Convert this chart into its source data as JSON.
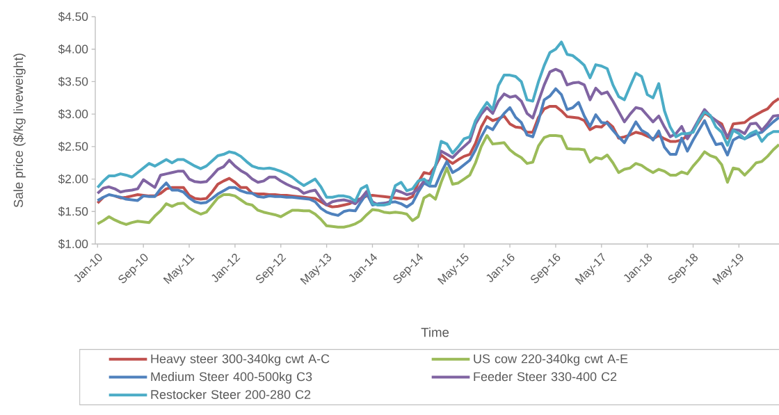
{
  "chart_data": {
    "type": "line",
    "xlabel": "Time",
    "ylabel": "Sale price ($/kg liveweight)",
    "categories": [
      "Jan-10",
      null,
      null,
      null,
      null,
      null,
      null,
      null,
      "Sep-10",
      null,
      null,
      null,
      null,
      null,
      null,
      null,
      "May-11",
      null,
      null,
      null,
      null,
      null,
      null,
      null,
      "Jan-12",
      null,
      null,
      null,
      null,
      null,
      null,
      null,
      "Sep-12",
      null,
      null,
      null,
      null,
      null,
      null,
      null,
      "May-13",
      null,
      null,
      null,
      null,
      null,
      null,
      null,
      "Jan-14",
      null,
      null,
      null,
      null,
      null,
      null,
      null,
      "Sep-14",
      null,
      null,
      null,
      null,
      null,
      null,
      null,
      "May-15",
      null,
      null,
      null,
      null,
      null,
      null,
      null,
      "Jan-16",
      null,
      null,
      null,
      null,
      null,
      null,
      null,
      "Sep-16",
      null,
      null,
      null,
      null,
      null,
      null,
      null,
      "May-17",
      null,
      null,
      null,
      null,
      null,
      null,
      null,
      "Jan-18",
      null,
      null,
      null,
      null,
      null,
      null,
      null,
      "Sep-18",
      null,
      null,
      null,
      null,
      null,
      null,
      null,
      "May-19",
      null,
      null,
      null,
      null,
      null,
      null,
      null
    ],
    "ylim": [
      1,
      4.5
    ],
    "yticks": [
      {
        "value": 1,
        "label": "$1.00"
      },
      {
        "value": 1.5,
        "label": "$1.50"
      },
      {
        "value": 2,
        "label": "$2.00"
      },
      {
        "value": 2.5,
        "label": "$2.50"
      },
      {
        "value": 3,
        "label": "$3.00"
      },
      {
        "value": 3.5,
        "label": "$3.50"
      },
      {
        "value": 4,
        "label": "$4.00"
      },
      {
        "value": 4.5,
        "label": "$4.50"
      }
    ],
    "legend": "bottom",
    "series": [
      {
        "name": "Heavy steer 300-340kg cwt A-C",
        "color": "#c0504d",
        "values": [
          1.63,
          1.72,
          null,
          1.74,
          1.71,
          1.72,
          1.74,
          1.76,
          1.75,
          1.74,
          1.74,
          1.78,
          1.85,
          1.87,
          1.87,
          1.87,
          1.75,
          1.7,
          1.69,
          1.7,
          1.8,
          1.92,
          1.97,
          2.01,
          1.95,
          1.87,
          1.87,
          1.78,
          1.77,
          1.77,
          1.76,
          1.76,
          1.75,
          1.75,
          1.74,
          1.73,
          1.72,
          1.71,
          1.7,
          1.65,
          1.6,
          1.57,
          1.58,
          1.6,
          1.62,
          1.67,
          1.7,
          1.74,
          1.75,
          1.74,
          1.73,
          1.72,
          1.71,
          1.7,
          1.69,
          1.73,
          1.95,
          2.1,
          2.08,
          2.2,
          2.37,
          2.3,
          2.24,
          2.3,
          2.35,
          2.38,
          2.55,
          2.8,
          2.96,
          2.9,
          2.93,
          2.97,
          2.85,
          2.8,
          2.79,
          2.72,
          2.72,
          2.95,
          3.08,
          3.12,
          3.12,
          3.05,
          2.96,
          2.95,
          2.94,
          2.9,
          2.76,
          2.81,
          2.8,
          2.88,
          2.8,
          2.63,
          2.65,
          2.68,
          2.72,
          2.7,
          2.66,
          2.62,
          2.67,
          2.62,
          2.58,
          2.58,
          2.6,
          2.67,
          2.74,
          2.88,
          3.02,
          2.96,
          2.9,
          2.85,
          2.63,
          2.85,
          2.86,
          2.87,
          2.94,
          2.99,
          3.04,
          3.08,
          3.18,
          3.24
        ]
      },
      {
        "name": "US cow 220-340kg cwt A-E",
        "color": "#9bbb59",
        "values": [
          1.31,
          1.36,
          1.42,
          1.37,
          1.33,
          1.3,
          1.33,
          1.35,
          1.34,
          1.33,
          1.43,
          1.51,
          1.62,
          1.58,
          1.62,
          1.63,
          1.55,
          1.5,
          1.46,
          1.49,
          1.6,
          1.71,
          1.76,
          1.76,
          1.74,
          1.68,
          1.62,
          1.6,
          1.52,
          1.49,
          1.47,
          1.45,
          1.42,
          1.47,
          1.52,
          1.52,
          1.51,
          1.51,
          1.46,
          1.38,
          1.28,
          1.27,
          1.26,
          1.26,
          1.28,
          1.31,
          1.36,
          1.45,
          1.53,
          1.52,
          1.49,
          1.48,
          1.49,
          1.48,
          1.46,
          1.36,
          1.42,
          1.71,
          1.76,
          1.69,
          1.95,
          2.17,
          1.92,
          1.94,
          2.0,
          2.06,
          2.25,
          2.5,
          2.67,
          2.54,
          2.55,
          2.56,
          2.45,
          2.38,
          2.33,
          2.24,
          2.26,
          2.51,
          2.64,
          2.67,
          2.67,
          2.66,
          2.47,
          2.46,
          2.46,
          2.45,
          2.26,
          2.33,
          2.31,
          2.37,
          2.25,
          2.1,
          2.15,
          2.17,
          2.24,
          2.21,
          2.15,
          2.1,
          2.15,
          2.12,
          2.06,
          2.06,
          2.11,
          2.08,
          2.2,
          2.3,
          2.42,
          2.36,
          2.33,
          2.22,
          1.95,
          2.17,
          2.15,
          2.06,
          2.15,
          2.25,
          2.27,
          2.35,
          2.45,
          2.53
        ]
      },
      {
        "name": "Medium Steer 400-500kg C3",
        "color": "#4f81bd",
        "values": [
          1.67,
          1.72,
          1.76,
          1.74,
          1.72,
          1.69,
          1.68,
          1.67,
          1.74,
          1.73,
          1.73,
          1.85,
          1.94,
          1.83,
          1.83,
          1.8,
          1.71,
          1.65,
          1.63,
          1.64,
          1.7,
          1.77,
          1.82,
          1.87,
          1.87,
          1.82,
          1.79,
          1.78,
          1.73,
          1.72,
          1.74,
          1.73,
          1.73,
          1.72,
          1.72,
          1.71,
          1.7,
          1.69,
          1.65,
          1.55,
          1.49,
          1.46,
          1.44,
          1.5,
          1.52,
          1.51,
          1.65,
          1.78,
          1.6,
          1.62,
          1.63,
          1.64,
          1.65,
          1.62,
          1.57,
          1.63,
          1.8,
          1.94,
          1.89,
          1.89,
          2.1,
          2.27,
          2.1,
          2.15,
          2.22,
          2.29,
          2.45,
          2.65,
          2.81,
          2.76,
          2.9,
          3.01,
          3.1,
          2.95,
          2.87,
          2.68,
          2.65,
          2.9,
          3.22,
          3.28,
          3.39,
          3.3,
          3.07,
          3.1,
          3.18,
          2.97,
          2.81,
          2.99,
          2.87,
          2.86,
          2.75,
          2.65,
          2.56,
          2.72,
          2.88,
          2.75,
          2.7,
          2.6,
          2.74,
          2.49,
          2.38,
          2.38,
          2.63,
          2.43,
          2.6,
          2.75,
          2.9,
          2.7,
          2.53,
          2.55,
          2.37,
          2.6,
          2.65,
          2.62,
          2.66,
          2.7,
          2.72,
          2.8,
          2.88,
          2.95
        ]
      },
      {
        "name": "Feeder Steer 330-400 C2",
        "color": "#8064a2",
        "values": [
          1.78,
          1.86,
          1.88,
          1.85,
          1.8,
          1.82,
          1.83,
          1.85,
          1.99,
          1.93,
          1.87,
          2.06,
          2.08,
          2.1,
          2.12,
          2.12,
          2.0,
          1.96,
          1.95,
          1.96,
          2.05,
          2.15,
          2.19,
          2.29,
          2.2,
          2.13,
          2.08,
          2.0,
          1.95,
          1.97,
          2.03,
          2.03,
          1.97,
          1.92,
          1.88,
          1.85,
          1.78,
          1.81,
          1.83,
          1.7,
          1.6,
          1.65,
          1.67,
          1.68,
          1.66,
          1.62,
          1.7,
          1.81,
          1.65,
          1.6,
          1.62,
          1.65,
          1.83,
          1.8,
          1.76,
          1.78,
          1.85,
          1.97,
          1.97,
          2.2,
          2.43,
          2.38,
          2.33,
          2.42,
          2.5,
          2.58,
          2.85,
          3.0,
          3.1,
          3.01,
          3.2,
          3.31,
          3.26,
          3.28,
          3.2,
          3.01,
          2.94,
          3.2,
          3.45,
          3.65,
          3.69,
          3.65,
          3.45,
          3.48,
          3.49,
          3.45,
          3.22,
          3.4,
          3.31,
          3.34,
          3.2,
          3.04,
          2.88,
          3.0,
          3.1,
          3.08,
          2.98,
          2.88,
          2.97,
          2.8,
          2.65,
          2.7,
          2.81,
          2.62,
          2.76,
          2.92,
          3.07,
          2.97,
          2.9,
          2.8,
          2.65,
          2.76,
          2.75,
          2.7,
          2.85,
          2.86,
          2.75,
          2.85,
          2.97,
          2.98
        ]
      },
      {
        "name": "Restocker Steer 200-280 C2",
        "color": "#4bacc6",
        "values": [
          1.87,
          1.97,
          2.05,
          2.05,
          2.08,
          2.06,
          2.03,
          2.1,
          2.17,
          2.24,
          2.2,
          2.25,
          2.3,
          2.25,
          2.3,
          2.3,
          2.25,
          2.2,
          2.16,
          2.2,
          2.28,
          2.36,
          2.38,
          2.42,
          2.4,
          2.35,
          2.27,
          2.2,
          2.17,
          2.16,
          2.17,
          2.15,
          2.12,
          2.08,
          2.03,
          1.96,
          1.9,
          1.95,
          2.0,
          1.88,
          1.72,
          1.72,
          1.74,
          1.74,
          1.72,
          1.66,
          1.85,
          1.9,
          1.62,
          1.6,
          1.6,
          1.62,
          1.9,
          1.95,
          1.82,
          1.85,
          1.97,
          2.0,
          1.92,
          2.2,
          2.58,
          2.54,
          2.4,
          2.5,
          2.62,
          2.65,
          2.9,
          3.05,
          3.18,
          3.07,
          3.44,
          3.6,
          3.6,
          3.58,
          3.5,
          3.22,
          3.2,
          3.5,
          3.75,
          3.95,
          4.0,
          4.11,
          3.92,
          3.9,
          3.83,
          3.75,
          3.56,
          3.76,
          3.74,
          3.7,
          3.45,
          3.27,
          3.22,
          3.43,
          3.63,
          3.58,
          3.3,
          3.25,
          3.47,
          3.05,
          2.8,
          2.65,
          2.7,
          2.7,
          2.72,
          2.9,
          3.03,
          2.98,
          2.8,
          2.72,
          2.52,
          2.75,
          2.7,
          2.62,
          2.7,
          2.74,
          2.58,
          2.68,
          2.73,
          2.73
        ]
      }
    ]
  }
}
